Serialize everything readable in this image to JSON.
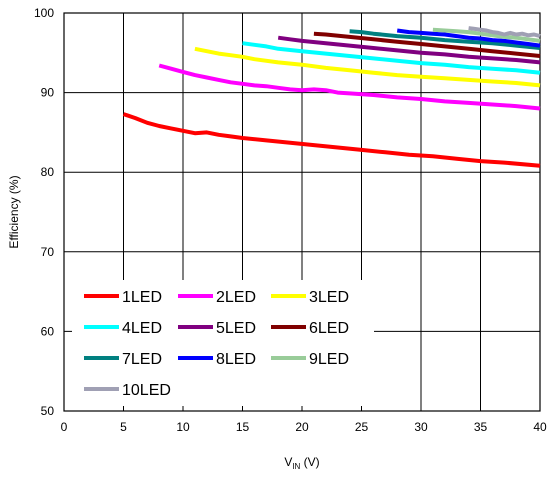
{
  "chart_data": {
    "type": "line",
    "title": "",
    "xlabel": {
      "main": "V",
      "sub": "IN",
      "unit": " (V)"
    },
    "ylabel": "Efficiency (%)",
    "xlim": [
      0,
      40
    ],
    "ylim": [
      50,
      100
    ],
    "xticks": [
      0,
      5,
      10,
      15,
      20,
      25,
      30,
      35,
      40
    ],
    "yticks": [
      50,
      60,
      70,
      80,
      90,
      100
    ],
    "grid": true,
    "legend_position": "bottom-left",
    "series": [
      {
        "name": "1LED",
        "color": "#ff0000",
        "x": [
          5,
          6,
          7,
          8,
          9,
          10,
          11,
          12,
          13,
          14,
          15,
          17,
          19,
          21,
          23,
          25,
          27,
          29,
          31,
          33,
          35,
          37,
          40
        ],
        "y": [
          87.3,
          86.8,
          86.2,
          85.8,
          85.5,
          85.2,
          84.9,
          85.0,
          84.7,
          84.5,
          84.3,
          84.0,
          83.7,
          83.4,
          83.1,
          82.8,
          82.5,
          82.2,
          82.0,
          81.7,
          81.4,
          81.2,
          80.8
        ]
      },
      {
        "name": "2LED",
        "color": "#ff00ff",
        "x": [
          8,
          9,
          10,
          11,
          12,
          13,
          14,
          15,
          16,
          17,
          18,
          19,
          20,
          21,
          22,
          23,
          24,
          26,
          28,
          30,
          32,
          34,
          36,
          38,
          40
        ],
        "y": [
          93.4,
          93.0,
          92.6,
          92.2,
          91.9,
          91.6,
          91.3,
          91.1,
          90.9,
          90.8,
          90.6,
          90.4,
          90.3,
          90.4,
          90.3,
          90.0,
          89.9,
          89.7,
          89.4,
          89.2,
          88.9,
          88.7,
          88.5,
          88.3,
          88.0
        ]
      },
      {
        "name": "3LED",
        "color": "#ffff00",
        "x": [
          11,
          12,
          13,
          14,
          15,
          16,
          18,
          20,
          22,
          24,
          26,
          28,
          30,
          32,
          34,
          36,
          38,
          40
        ],
        "y": [
          95.5,
          95.2,
          94.9,
          94.7,
          94.5,
          94.2,
          93.8,
          93.5,
          93.1,
          92.8,
          92.5,
          92.2,
          92.0,
          91.8,
          91.6,
          91.4,
          91.2,
          90.9
        ]
      },
      {
        "name": "4LED",
        "color": "#00ffff",
        "x": [
          15,
          16,
          17,
          18,
          20,
          22,
          24,
          26,
          28,
          30,
          32,
          34,
          36,
          38,
          40
        ],
        "y": [
          96.2,
          96.0,
          95.8,
          95.5,
          95.2,
          94.9,
          94.6,
          94.3,
          94.0,
          93.7,
          93.5,
          93.2,
          93.0,
          92.8,
          92.5
        ]
      },
      {
        "name": "5LED",
        "color": "#800080",
        "x": [
          18,
          19,
          20,
          22,
          24,
          26,
          28,
          30,
          32,
          34,
          36,
          38,
          40
        ],
        "y": [
          96.9,
          96.7,
          96.5,
          96.2,
          95.9,
          95.6,
          95.3,
          95.0,
          94.8,
          94.5,
          94.3,
          94.1,
          93.8
        ]
      },
      {
        "name": "6LED",
        "color": "#800000",
        "x": [
          21,
          22,
          24,
          26,
          28,
          30,
          32,
          34,
          36,
          38,
          40
        ],
        "y": [
          97.4,
          97.3,
          97.0,
          96.7,
          96.4,
          96.1,
          95.8,
          95.5,
          95.2,
          94.9,
          94.6
        ]
      },
      {
        "name": "7LED",
        "color": "#008080",
        "x": [
          24,
          25,
          26,
          28,
          30,
          32,
          34,
          36,
          38,
          40
        ],
        "y": [
          97.7,
          97.6,
          97.4,
          97.1,
          96.9,
          96.6,
          96.4,
          96.2,
          95.9,
          95.6
        ]
      },
      {
        "name": "8LED",
        "color": "#0000ff",
        "x": [
          28,
          29,
          30,
          31,
          32,
          33,
          34,
          35,
          36,
          37,
          38,
          39,
          40
        ],
        "y": [
          97.8,
          97.6,
          97.5,
          97.4,
          97.3,
          97.1,
          96.9,
          96.8,
          96.6,
          96.5,
          96.3,
          96.1,
          95.9
        ]
      },
      {
        "name": "9LED",
        "color": "#99cc99",
        "x": [
          31,
          32,
          33,
          34,
          35,
          36,
          37,
          38,
          39,
          40
        ],
        "y": [
          97.9,
          97.8,
          97.7,
          97.6,
          97.4,
          97.2,
          97.0,
          96.9,
          96.7,
          96.5
        ]
      },
      {
        "name": "10LED",
        "color": "#a0a0b4",
        "x": [
          34,
          34.5,
          35,
          35.5,
          36,
          36.5,
          37,
          37.5,
          38,
          38.5,
          39,
          39.5,
          40
        ],
        "y": [
          98.1,
          98.0,
          97.9,
          97.8,
          97.6,
          97.5,
          97.3,
          97.5,
          97.3,
          97.4,
          97.2,
          97.3,
          97.1
        ]
      }
    ]
  }
}
